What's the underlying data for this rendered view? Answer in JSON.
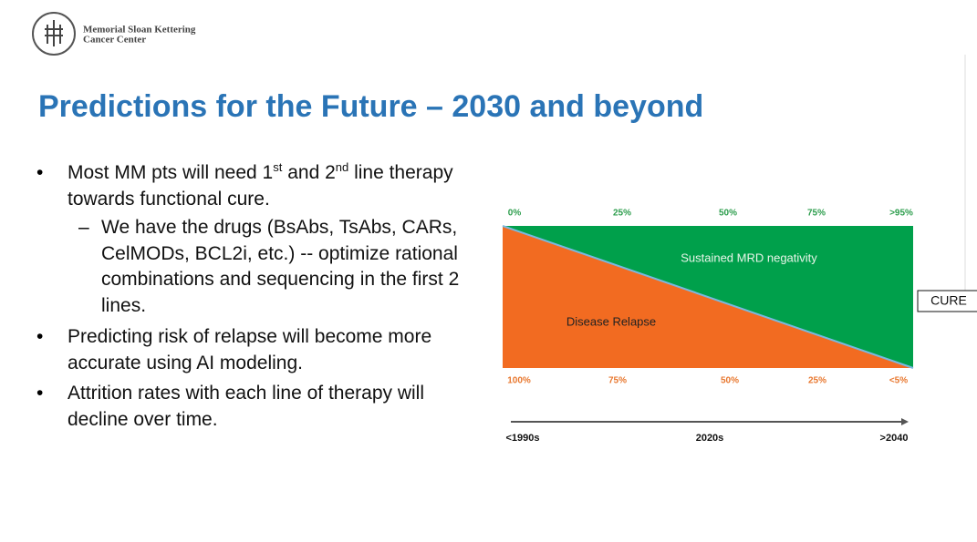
{
  "logo": {
    "line1": "Memorial Sloan Kettering",
    "line2": "Cancer Center"
  },
  "title": "Predictions for the Future – 2030 and beyond",
  "bullets": [
    {
      "parts": [
        "Most MM pts will need 1",
        "st",
        " and 2",
        "nd",
        " line therapy towards functional cure."
      ]
    },
    {
      "text": "We have the drugs (BsAbs, TsAbs, CARs, CelMODs, BCL2i, etc.) -- optimize rational combinations and sequencing in the first 2 lines."
    },
    {
      "text": "Predicting risk of relapse will become more accurate using AI modeling."
    },
    {
      "text": "Attrition rates with each line of therapy will decline over time."
    }
  ],
  "diagram": {
    "top_labels": [
      "0%",
      "25%",
      "50%",
      "75%",
      ">95%"
    ],
    "bottom_labels": [
      "100%",
      "75%",
      "50%",
      "25%",
      "<5%"
    ],
    "upper_region": "Sustained MRD negativity",
    "lower_region": "Disease Relapse",
    "timeline": [
      "<1990s",
      "2020s",
      ">2040"
    ],
    "end_box": "CURE"
  }
}
